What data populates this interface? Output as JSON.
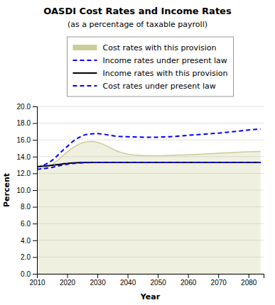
{
  "chart_data": {
    "type": "line",
    "title": "OASDI Cost Rates and Income Rates",
    "subtitle": "(as a percentage of taxable payroll)",
    "xlabel": "Year",
    "ylabel": "Percent",
    "xlim": [
      2010,
      2085
    ],
    "ylim": [
      0.0,
      20.0
    ],
    "xticks": [
      2010,
      2020,
      2030,
      2040,
      2050,
      2060,
      2070,
      2080
    ],
    "yticks": [
      {
        "value": 0.0,
        "label": "0.0"
      },
      {
        "value": 2.0,
        "label": "2.0"
      },
      {
        "value": 4.0,
        "label": "4.0"
      },
      {
        "value": 6.0,
        "label": "6.0"
      },
      {
        "value": 8.0,
        "label": "8.0"
      },
      {
        "value": 10.0,
        "label": "10.0"
      },
      {
        "value": 12.0,
        "label": "12.0"
      },
      {
        "value": 14.0,
        "label": "14.0"
      },
      {
        "value": 16.0,
        "label": "16.0"
      },
      {
        "value": 18.0,
        "label": "18.0"
      },
      {
        "value": 20.0,
        "label": "20.0"
      }
    ],
    "grid": true,
    "legend": "top",
    "x": [
      2010,
      2011,
      2012,
      2013,
      2014,
      2015,
      2016,
      2017,
      2018,
      2019,
      2020,
      2021,
      2022,
      2023,
      2024,
      2025,
      2026,
      2027,
      2028,
      2029,
      2030,
      2031,
      2032,
      2033,
      2034,
      2035,
      2036,
      2037,
      2038,
      2039,
      2040,
      2042,
      2044,
      2046,
      2048,
      2050,
      2052,
      2054,
      2056,
      2058,
      2060,
      2062,
      2064,
      2066,
      2068,
      2070,
      2072,
      2074,
      2076,
      2078,
      2080,
      2082,
      2084
    ],
    "series": [
      {
        "name": "Cost rates with this provision",
        "type": "area",
        "color": "#cccc99",
        "line_style": "solid",
        "values": [
          12.5,
          12.55,
          12.6,
          12.7,
          12.85,
          13.05,
          13.3,
          13.6,
          13.95,
          14.25,
          14.55,
          14.85,
          15.1,
          15.3,
          15.5,
          15.65,
          15.72,
          15.78,
          15.8,
          15.78,
          15.72,
          15.6,
          15.45,
          15.28,
          15.1,
          14.92,
          14.75,
          14.6,
          14.48,
          14.38,
          14.3,
          14.2,
          14.15,
          14.12,
          14.1,
          14.1,
          14.12,
          14.15,
          14.18,
          14.2,
          14.22,
          14.25,
          14.28,
          14.32,
          14.36,
          14.4,
          14.44,
          14.48,
          14.52,
          14.55,
          14.58,
          14.6,
          14.62
        ]
      },
      {
        "name": "Income rates under present law",
        "type": "line",
        "color": "blue",
        "line_style": "dashed",
        "values": [
          12.8,
          12.85,
          12.95,
          13.1,
          13.3,
          13.55,
          13.85,
          14.2,
          14.55,
          14.9,
          15.2,
          15.55,
          15.85,
          16.1,
          16.3,
          16.5,
          16.62,
          16.68,
          16.72,
          16.74,
          16.75,
          16.72,
          16.68,
          16.62,
          16.55,
          16.5,
          16.45,
          16.42,
          16.4,
          16.38,
          16.37,
          16.35,
          16.33,
          16.32,
          16.32,
          16.32,
          16.35,
          16.38,
          16.42,
          16.48,
          16.55,
          16.6,
          16.65,
          16.7,
          16.75,
          16.8,
          16.88,
          16.95,
          17.02,
          17.1,
          17.18,
          17.25,
          17.3
        ]
      },
      {
        "name": "Income rates with this provision",
        "type": "line",
        "color": "black",
        "line_style": "solid",
        "values": [
          12.8,
          12.82,
          12.85,
          12.88,
          12.92,
          12.96,
          13.0,
          13.05,
          13.1,
          13.15,
          13.18,
          13.22,
          13.25,
          13.27,
          13.28,
          13.29,
          13.3,
          13.3,
          13.3,
          13.3,
          13.3,
          13.3,
          13.3,
          13.3,
          13.3,
          13.3,
          13.3,
          13.3,
          13.3,
          13.3,
          13.3,
          13.3,
          13.3,
          13.3,
          13.3,
          13.3,
          13.3,
          13.3,
          13.3,
          13.3,
          13.3,
          13.3,
          13.3,
          13.3,
          13.3,
          13.3,
          13.3,
          13.3,
          13.3,
          13.3,
          13.3,
          13.3,
          13.3
        ]
      },
      {
        "name": "Cost rates under present law",
        "type": "line",
        "color": "blue",
        "line_style": "dashed",
        "values": [
          12.5,
          12.52,
          12.55,
          12.6,
          12.65,
          12.72,
          12.8,
          12.88,
          12.96,
          13.03,
          13.1,
          13.15,
          13.18,
          13.22,
          13.25,
          13.27,
          13.28,
          13.29,
          13.3,
          13.3,
          13.3,
          13.3,
          13.3,
          13.3,
          13.3,
          13.3,
          13.3,
          13.3,
          13.3,
          13.3,
          13.3,
          13.3,
          13.3,
          13.3,
          13.3,
          13.3,
          13.3,
          13.3,
          13.3,
          13.3,
          13.3,
          13.3,
          13.3,
          13.3,
          13.3,
          13.3,
          13.3,
          13.3,
          13.3,
          13.3,
          13.3,
          13.3,
          13.3
        ]
      }
    ]
  }
}
